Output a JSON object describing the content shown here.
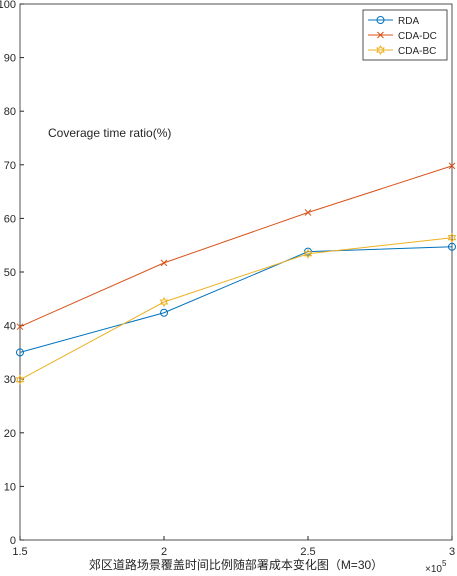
{
  "chart_data": {
    "type": "line",
    "y_label": "Coverage time ratio(%)",
    "x_label": "郊区道路场景覆盖时间比例随部署成本变化图（M=30）",
    "x_multiplier": {
      "base": "×10",
      "exponent": "5"
    },
    "x": [
      150000,
      200000,
      250000,
      300000
    ],
    "series": [
      {
        "name": "RDA",
        "color": "#0072bd",
        "marker": "circle",
        "values": [
          35.0,
          42.4,
          53.8,
          54.7
        ]
      },
      {
        "name": "CDA-DC",
        "color": "#d95319",
        "marker": "x",
        "values": [
          39.8,
          51.7,
          61.1,
          69.8
        ]
      },
      {
        "name": "CDA-BC",
        "color": "#edb120",
        "marker": "hexagram",
        "values": [
          29.9,
          44.4,
          53.4,
          56.4
        ]
      }
    ],
    "xlim": [
      150000,
      300000
    ],
    "xticks": [
      {
        "value": 150000,
        "label": "1.5"
      },
      {
        "value": 200000,
        "label": "2"
      },
      {
        "value": 250000,
        "label": "2.5"
      },
      {
        "value": 300000,
        "label": "3"
      }
    ],
    "ylim": [
      0,
      100
    ],
    "yticks": [
      0,
      10,
      20,
      30,
      40,
      50,
      60,
      70,
      80,
      90,
      100
    ],
    "grid": false,
    "legend_position": "top-right"
  }
}
